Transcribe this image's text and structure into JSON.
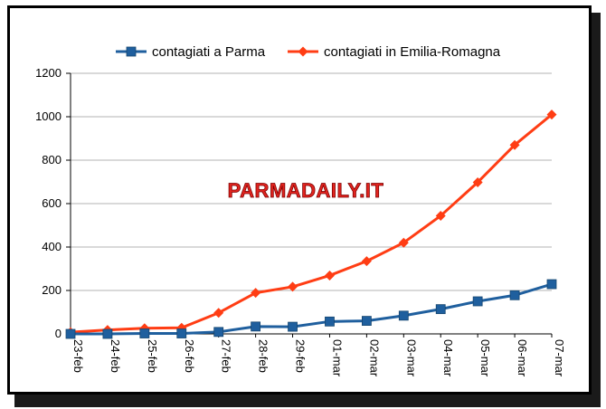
{
  "watermark": "PARMADAILY.IT",
  "colors": {
    "parma": "#1f5f9e",
    "emilia": "#ff3d14",
    "grid": "#b3b3b3",
    "axis": "#000000"
  },
  "chart_data": {
    "type": "line",
    "categories": [
      "23-feb",
      "24-feb",
      "25-feb",
      "26-feb",
      "27-feb",
      "28-feb",
      "29-feb",
      "01-mar",
      "02-mar",
      "03-mar",
      "04-mar",
      "05-mar",
      "06-mar",
      "07-mar"
    ],
    "ylim": [
      0,
      1200
    ],
    "yticks": [
      0,
      200,
      400,
      600,
      800,
      1000,
      1200
    ],
    "grid": true,
    "legend_position": "top",
    "series": [
      {
        "name": "contagiati a Parma",
        "marker": "square",
        "color": "#1f5f9e",
        "values": [
          0,
          0,
          2,
          2,
          9,
          34,
          33,
          57,
          60,
          84,
          114,
          150,
          178,
          229
        ]
      },
      {
        "name": "contagiati in Emilia-Romagna",
        "marker": "diamond",
        "color": "#ff3d14",
        "values": [
          8,
          18,
          26,
          28,
          97,
          189,
          217,
          269,
          335,
          420,
          544,
          698,
          870,
          1010
        ]
      }
    ]
  }
}
